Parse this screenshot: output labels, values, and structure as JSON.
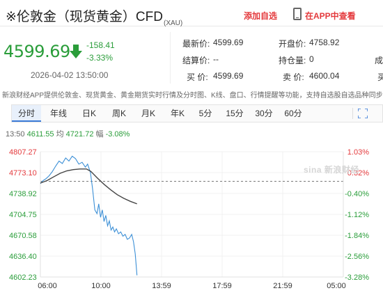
{
  "header": {
    "title": "※伦敦金（现货黄金）CFD",
    "code": "(XAU)",
    "add_fav": "添加自选",
    "app_link": "在APP中查看"
  },
  "quote": {
    "price": "4599.69",
    "change": "-158.41",
    "change_pct": "-3.33%",
    "datetime": "2026-04-02 13:50:00"
  },
  "stats": {
    "latest_label": "最新价:",
    "latest": "4599.69",
    "open_label": "开盘价:",
    "open": "4758.92",
    "settle_label": "结算价:",
    "settle": "--",
    "position_label": "持仓量:",
    "position": "0",
    "volume_label": "成",
    "buy_label": "买  价:",
    "buy": "4599.69",
    "sell_label": "卖  价:",
    "sell": "4600.04",
    "extra_label": "买"
  },
  "disclaimer": "新浪财经APP提供伦敦金、现货黄金、黄金期货实时行情及分时图、K线、盘口、行情提醒等功能，支持自选股自选品种同步",
  "tabs": [
    "分时",
    "年线",
    "日K",
    "周K",
    "月K",
    "年K",
    "5分",
    "15分",
    "30分",
    "60分"
  ],
  "active_tab": "分时",
  "info": {
    "time": "13:50",
    "price": "4611.55",
    "avg_label": "均",
    "avg": "4721.72",
    "amp_label": "幅",
    "amp": "-3.08%"
  },
  "watermark": "sina 新浪财经",
  "chart_data": {
    "type": "line",
    "x_ticks": [
      "06:00",
      "10:00",
      "13:59",
      "17:59",
      "21:59",
      "05:00"
    ],
    "y_left_ticks": [
      "4807.27",
      "4773.10",
      "4738.92",
      "4704.75",
      "4670.58",
      "4636.40",
      "4602.23"
    ],
    "y_right_ticks": [
      "1.03%",
      "0.32%",
      "-0.40%",
      "-1.12%",
      "-1.84%",
      "-2.56%",
      "-3.28%"
    ],
    "reference": 4758.92,
    "ylim": [
      4602.23,
      4807.27
    ],
    "xlim_minutes": [
      0,
      1380
    ],
    "series": [
      {
        "name": "价格",
        "color": "#3b8fd6",
        "points": [
          [
            0,
            4755
          ],
          [
            12,
            4760
          ],
          [
            25,
            4763
          ],
          [
            40,
            4768
          ],
          [
            55,
            4775
          ],
          [
            70,
            4784
          ],
          [
            85,
            4792
          ],
          [
            100,
            4788
          ],
          [
            115,
            4797
          ],
          [
            130,
            4792
          ],
          [
            145,
            4800
          ],
          [
            160,
            4796
          ],
          [
            175,
            4787
          ],
          [
            190,
            4790
          ],
          [
            205,
            4782
          ],
          [
            215,
            4787
          ],
          [
            228,
            4773
          ],
          [
            238,
            4746
          ],
          [
            248,
            4712
          ],
          [
            258,
            4706
          ],
          [
            266,
            4722
          ],
          [
            274,
            4700
          ],
          [
            282,
            4712
          ],
          [
            290,
            4693
          ],
          [
            298,
            4703
          ],
          [
            306,
            4686
          ],
          [
            314,
            4694
          ],
          [
            322,
            4679
          ],
          [
            330,
            4684
          ],
          [
            338,
            4676
          ],
          [
            346,
            4681
          ],
          [
            356,
            4673
          ],
          [
            366,
            4676
          ],
          [
            376,
            4669
          ],
          [
            386,
            4672
          ],
          [
            396,
            4664
          ],
          [
            406,
            4666
          ],
          [
            416,
            4672
          ],
          [
            424,
            4660
          ],
          [
            432,
            4640
          ],
          [
            440,
            4605
          ]
        ]
      },
      {
        "name": "均价",
        "color": "#444444",
        "points": [
          [
            0,
            4756
          ],
          [
            30,
            4760
          ],
          [
            60,
            4766
          ],
          [
            90,
            4772
          ],
          [
            120,
            4776
          ],
          [
            150,
            4778
          ],
          [
            180,
            4779
          ],
          [
            210,
            4779
          ],
          [
            230,
            4775
          ],
          [
            260,
            4764
          ],
          [
            290,
            4754
          ],
          [
            320,
            4745
          ],
          [
            350,
            4737
          ],
          [
            380,
            4731
          ],
          [
            410,
            4726
          ],
          [
            440,
            4722
          ]
        ]
      }
    ]
  }
}
